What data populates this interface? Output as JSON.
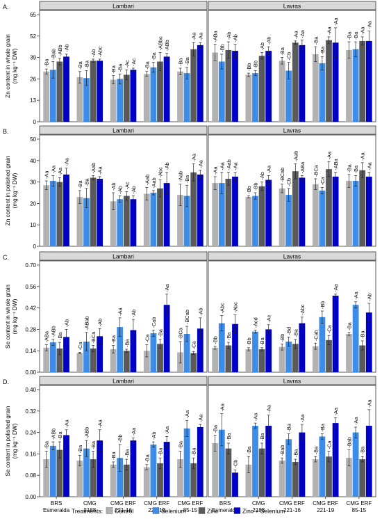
{
  "figure": {
    "cultivars": [
      "BRS\nEsmeralda",
      "CMG\n2188",
      "CMG ERF\n221-16",
      "CMG ERF\n221-19",
      "CMG ERF\n85-15"
    ],
    "sites": [
      "Lambari",
      "Lavras"
    ],
    "treatments_title": "Treatments:",
    "treatments": [
      {
        "name": "Control",
        "color": "#b2b2b2"
      },
      {
        "name": "Selenium",
        "color": "#3d8ce8"
      },
      {
        "name": "Zinc",
        "color": "#5a5a5a"
      },
      {
        "name": "Zinc + Selenium",
        "color": "#0000c8"
      }
    ]
  },
  "chart_data": [
    {
      "type": "bar",
      "panel": "A.",
      "ylabel": [
        "Zn content in whole grain",
        "(mg kg⁻¹ DW)"
      ],
      "ylim": [
        0,
        65
      ],
      "ticks": [
        0,
        13,
        26,
        39,
        52,
        65
      ],
      "tick_labels": [
        "0",
        "13",
        "26",
        "39",
        "52",
        "65"
      ],
      "lambari": {
        "values": [
          [
            30.5,
            31.5,
            36.5,
            39.5
          ],
          [
            27,
            26.5,
            37,
            37
          ],
          [
            25.5,
            26,
            28.5,
            31.5
          ],
          [
            29,
            33,
            36.5,
            39.5
          ],
          [
            30.5,
            29.5,
            44,
            46.5
          ]
        ],
        "errors": [
          [
            1.5,
            5,
            2,
            1.5
          ],
          [
            3.5,
            4.5,
            1,
            1
          ],
          [
            2.5,
            3,
            3,
            1
          ],
          [
            1.5,
            3,
            5.5,
            2
          ],
          [
            2,
            3.5,
            4,
            1.5
          ]
        ],
        "labels": [
          [
            "Ba",
            "Bab",
            "ABb",
            "Ab"
          ],
          [
            "Ba",
            "Ba",
            "Ab",
            "Abc"
          ],
          [
            "Ba",
            "Ba",
            "Ac",
            "Ac"
          ],
          [
            "Ba",
            "Ba",
            "ABbc",
            "ABb"
          ],
          [
            "Ba",
            "Ba",
            "Aa",
            "Aa"
          ]
        ]
      },
      "lavras": {
        "values": [
          [
            42,
            36.5,
            43.5,
            43
          ],
          [
            28.5,
            29.5,
            40,
            43
          ],
          [
            37,
            31,
            48,
            46.5
          ],
          [
            41,
            35.5,
            49.5,
            48
          ],
          [
            43.5,
            44,
            49,
            49
          ]
        ],
        "errors": [
          [
            5,
            4.5,
            5,
            4
          ],
          [
            1,
            1.5,
            2,
            2.5
          ],
          [
            2,
            5,
            1,
            3
          ],
          [
            4.5,
            4,
            2,
            9
          ],
          [
            5,
            4.5,
            2.5,
            6
          ]
        ],
        "labels": [
          [
            "ABa",
            "Bb",
            "Ab",
            "Ab"
          ],
          [
            "Bb",
            "Bb",
            "Ab",
            "Ab"
          ],
          [
            "Ba",
            "Cb",
            "Aa",
            "Aa"
          ],
          [
            "Ba",
            "Ba",
            "Aa",
            "Aa"
          ],
          [
            "Ba",
            "Ba",
            "Aa",
            "Aa"
          ]
        ]
      }
    },
    {
      "type": "bar",
      "panel": "B.",
      "ylabel": [
        "Zn content in polished grain",
        "(mg kg⁻¹ DW)"
      ],
      "ylim": [
        0,
        50
      ],
      "ticks": [
        0,
        10,
        20,
        30,
        40,
        50
      ],
      "tick_labels": [
        "0",
        "10",
        "20",
        "30",
        "40",
        "50"
      ],
      "lambari": {
        "values": [
          [
            28.5,
            30.5,
            30,
            33.5
          ],
          [
            23,
            22.5,
            32,
            31.5
          ],
          [
            21,
            22,
            23.5,
            22
          ],
          [
            24.5,
            25,
            27,
            29.5
          ],
          [
            24,
            23.5,
            34.5,
            33.5
          ]
        ],
        "errors": [
          [
            2,
            2.5,
            2,
            3
          ],
          [
            3,
            4.5,
            1,
            1
          ],
          [
            4,
            1.5,
            2,
            1.5
          ],
          [
            3,
            1,
            4,
            5
          ],
          [
            5,
            5,
            4,
            2
          ]
        ],
        "labels": [
          [
            "Aa",
            "Aa",
            "Aa",
            "Aa"
          ],
          [
            "Ba",
            "Ba",
            "Aab",
            "Aa"
          ],
          [
            "Ab",
            "Ab",
            "Ac",
            "Ab"
          ],
          [
            "Aab",
            "Aab",
            "Abc",
            "Ab"
          ],
          [
            "Aab",
            "Ba",
            "Aa",
            "Aa"
          ]
        ]
      },
      "lavras": {
        "values": [
          [
            29.5,
            29.5,
            31.5,
            32.5
          ],
          [
            23,
            23.5,
            28,
            31
          ],
          [
            27,
            24,
            35,
            32
          ],
          [
            29,
            26,
            36,
            32.5
          ],
          [
            30.5,
            30.5,
            35.5,
            32.5
          ]
        ],
        "errors": [
          [
            3,
            5,
            3,
            2
          ],
          [
            0.5,
            1.5,
            2,
            2
          ],
          [
            2,
            3,
            3.5,
            1
          ],
          [
            2.5,
            1.5,
            3.5,
            2
          ],
          [
            3,
            2.5,
            3.5,
            2
          ]
        ],
        "labels": [
          [
            "Aa",
            "Aa",
            "Aab",
            "Aa"
          ],
          [
            "Bb",
            "Bb",
            "Ab",
            "Aa"
          ],
          [
            "BCab",
            "Cb",
            "Aab",
            "ABa"
          ],
          [
            "BCa",
            "Ca",
            "Aa",
            "ABa"
          ],
          [
            "Ba",
            "Ba",
            "Aa",
            "Aa"
          ]
        ]
      }
    },
    {
      "type": "bar",
      "panel": "C.",
      "ylabel": [
        "Se content in whole grain",
        "(mg kg⁻¹ DW)"
      ],
      "ylim": [
        0,
        0.7
      ],
      "ticks": [
        0,
        0.14,
        0.28,
        0.42,
        0.56,
        0.7
      ],
      "tick_labels": [
        "0.00",
        "0.14",
        "0.28",
        "0.42",
        "0.56",
        "0.70"
      ],
      "lambari": {
        "values": [
          [
            0.16,
            0.195,
            0.155,
            0.23
          ],
          [
            0.125,
            0.2,
            0.155,
            0.235
          ],
          [
            0.15,
            0.295,
            0.14,
            0.275
          ],
          [
            0.14,
            0.255,
            0.185,
            0.44
          ],
          [
            0.13,
            0.25,
            0.125,
            0.285
          ]
        ],
        "errors": [
          [
            0.02,
            0.02,
            0.04,
            0.05
          ],
          [
            0.005,
            0.06,
            0.02,
            0.05
          ],
          [
            0.025,
            0.06,
            0.01,
            0.07
          ],
          [
            0.04,
            0.02,
            0.03,
            0.07
          ],
          [
            0.07,
            0.05,
            0.01,
            0.07
          ]
        ],
        "labels": [
          [
            "ABa",
            "ABb",
            "Ba",
            "Ab"
          ],
          [
            "Ca",
            "ABab",
            "BCa",
            "Ab"
          ],
          [
            "Ba",
            "Aa",
            "Ba",
            "Ab"
          ],
          [
            "Ca",
            "Cab",
            "Ba",
            "Aa"
          ],
          [
            "BCa",
            "BCab",
            "Ca",
            "Ab"
          ]
        ]
      },
      "lavras": {
        "values": [
          [
            0.16,
            0.32,
            0.175,
            0.315
          ],
          [
            0.15,
            0.265,
            0.15,
            0.28
          ],
          [
            0.165,
            0.2,
            0.185,
            0.32
          ],
          [
            0.17,
            0.36,
            0.21,
            0.5
          ],
          [
            0.25,
            0.44,
            0.175,
            0.39
          ]
        ],
        "errors": [
          [
            0.01,
            0.05,
            0.02,
            0.06
          ],
          [
            0.01,
            0.01,
            0.01,
            0.03
          ],
          [
            0.02,
            0.03,
            0.03,
            0.04
          ],
          [
            0.02,
            0.04,
            0.03,
            0.01
          ],
          [
            0.01,
            0.02,
            0.03,
            0.06
          ]
        ],
        "labels": [
          [
            "Bb",
            "Abc",
            "Ba",
            "Abc"
          ],
          [
            "Bb",
            "Acd",
            "Ba",
            "Ac"
          ],
          [
            "Bb",
            "Bd",
            "Ba",
            "Abc"
          ],
          [
            "Cab",
            "Bb",
            "Ca",
            "Aa"
          ],
          [
            "Ba",
            "Aa",
            "Ba",
            "Ab"
          ]
        ]
      }
    },
    {
      "type": "bar",
      "panel": "D.",
      "ylabel": [
        "Se content in polished grain",
        "(mg kg⁻¹ DW)"
      ],
      "ylim": [
        0,
        0.4
      ],
      "ticks": [
        0,
        0.08,
        0.16,
        0.24,
        0.32,
        0.4
      ],
      "tick_labels": [
        "0.00",
        "0.08",
        "0.16",
        "0.24",
        "0.32",
        "0.40"
      ],
      "lambari": {
        "values": [
          [
            0.14,
            0.19,
            0.175,
            0.23
          ],
          [
            0.135,
            0.18,
            0.14,
            0.21
          ],
          [
            0.12,
            0.145,
            0.12,
            0.21
          ],
          [
            0.11,
            0.195,
            0.125,
            0.205
          ],
          [
            0.14,
            0.255,
            0.125,
            0.26
          ]
        ],
        "errors": [
          [
            0.03,
            0.015,
            0.03,
            0.02
          ],
          [
            0.02,
            0.03,
            0.03,
            0.04
          ],
          [
            0.01,
            0.05,
            0.02,
            0.01
          ],
          [
            0.01,
            0.01,
            0.02,
            0.02
          ],
          [
            0.03,
            0.03,
            0.02,
            0.01
          ]
        ],
        "labels": [
          [
            "Ba",
            "ABb",
            "Ba",
            "Aa"
          ],
          [
            "Ba",
            "ABb",
            "Ba",
            "Aa"
          ],
          [
            "Ba",
            "Bb",
            "Ba",
            "Aa"
          ],
          [
            "Ba",
            "Ab",
            "Ba",
            "Aa"
          ],
          [
            "Ba",
            "Aa",
            "Ba",
            "Aa"
          ]
        ]
      },
      "lavras": {
        "values": [
          [
            0.2,
            0.25,
            0.18,
            0.09
          ],
          [
            0.12,
            0.265,
            0.18,
            0.265
          ],
          [
            0.135,
            0.215,
            0.13,
            0.24
          ],
          [
            0.14,
            0.225,
            0.15,
            0.275
          ],
          [
            0.145,
            0.24,
            0.14,
            0.265
          ]
        ],
        "errors": [
          [
            0.03,
            0.06,
            0.02,
            0.01
          ],
          [
            0.03,
            0.01,
            0.02,
            0.04
          ],
          [
            0.01,
            0.02,
            0.01,
            0.03
          ],
          [
            0.01,
            0.01,
            0.02,
            0.02
          ],
          [
            0.03,
            0.02,
            0.01,
            0.06
          ]
        ],
        "labels": [
          [
            "Ba",
            "Aa",
            "Ba",
            "Cb"
          ],
          [
            "Ba",
            "Aa",
            "Ba",
            "Aa"
          ],
          [
            "Bab",
            "Ba",
            "Ba",
            "Aa"
          ],
          [
            "Ba",
            "Ba",
            "Ca",
            "Aa"
          ],
          [
            "Bab",
            "Aa",
            "Ba",
            "Aa"
          ]
        ]
      }
    }
  ]
}
